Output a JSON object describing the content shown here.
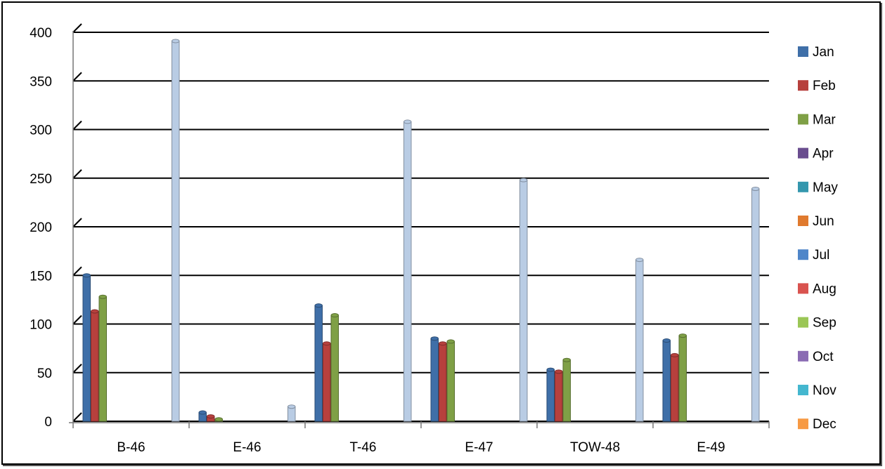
{
  "chart_data": {
    "type": "bar",
    "title": "",
    "xlabel": "",
    "ylabel": "",
    "ylim": [
      0,
      400
    ],
    "yticks": [
      0,
      50,
      100,
      150,
      200,
      250,
      300,
      350,
      400
    ],
    "grid": true,
    "legend_position": "right",
    "categories": [
      "B-46",
      "E-46",
      "T-46",
      "E-47",
      "TOW-48",
      "E-49"
    ],
    "series": [
      {
        "name": "Jan",
        "color": "#4f81bd",
        "values": [
          150,
          9,
          119,
          85,
          53,
          83
        ]
      },
      {
        "name": "Feb",
        "color": "#c0504d",
        "values": [
          113,
          5,
          80,
          80,
          51,
          68
        ]
      },
      {
        "name": "Mar",
        "color": "#9bbb59",
        "values": [
          128,
          2,
          109,
          82,
          63,
          88
        ]
      },
      {
        "name": "Apr",
        "color": "#8064a2",
        "values": [
          0,
          0,
          0,
          0,
          0,
          0
        ]
      },
      {
        "name": "May",
        "color": "#4bacc6",
        "values": [
          0,
          0,
          0,
          0,
          0,
          0
        ]
      },
      {
        "name": "Jun",
        "color": "#f79646",
        "values": [
          0,
          0,
          0,
          0,
          0,
          0
        ]
      },
      {
        "name": "Jul",
        "color": "#2c4d75",
        "values": [
          0,
          0,
          0,
          0,
          0,
          0
        ]
      },
      {
        "name": "Aug",
        "color": "#772c2a",
        "values": [
          0,
          0,
          0,
          0,
          0,
          0
        ]
      },
      {
        "name": "Sep",
        "color": "#5f7530",
        "values": [
          0,
          0,
          0,
          0,
          0,
          0
        ]
      },
      {
        "name": "Oct",
        "color": "#4d3b62",
        "values": [
          0,
          0,
          0,
          0,
          0,
          0
        ]
      },
      {
        "name": "Nov",
        "color": "#276a7c",
        "values": [
          0,
          0,
          0,
          0,
          0,
          0
        ]
      },
      {
        "name": "Dec",
        "color": "#b65708",
        "values": [
          391,
          15,
          308,
          248,
          166,
          239
        ]
      }
    ],
    "legend": [
      {
        "name": "Jan",
        "color": "#3f6fa8"
      },
      {
        "name": "Feb",
        "color": "#b7403d"
      },
      {
        "name": "Mar",
        "color": "#7fa046"
      },
      {
        "name": "Apr",
        "color": "#6a4d8f"
      },
      {
        "name": "May",
        "color": "#3497ae"
      },
      {
        "name": "Jun",
        "color": "#e07a2e"
      },
      {
        "name": "Jul",
        "color": "#4f86c9"
      },
      {
        "name": "Aug",
        "color": "#d9534f"
      },
      {
        "name": "Sep",
        "color": "#9bc656"
      },
      {
        "name": "Oct",
        "color": "#8a6bb3"
      },
      {
        "name": "Nov",
        "color": "#44b7cf"
      },
      {
        "name": "Dec",
        "color": "#f79a44"
      }
    ],
    "dec_bar_color": "#b9cce4"
  }
}
